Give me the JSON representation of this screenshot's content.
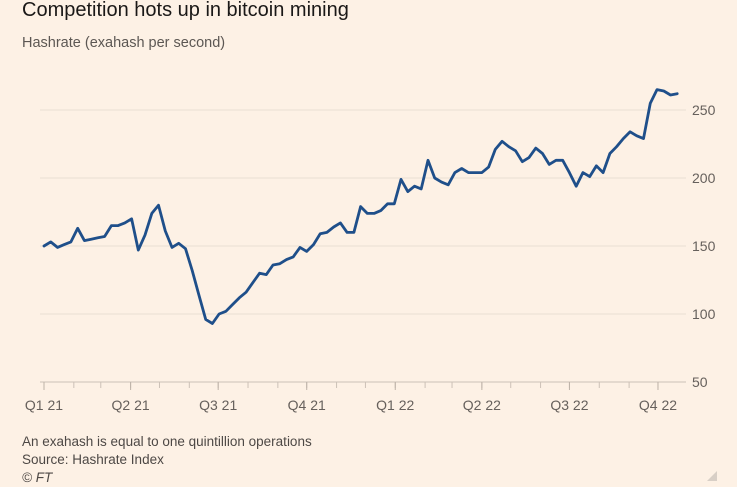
{
  "title": "Competition hots up in bitcoin mining",
  "subtitle": "Hashrate (exahash per second)",
  "footnote": "An exahash is equal to one quintillion operations",
  "source": "Source: Hashrate Index",
  "credit": "© FT",
  "colors": {
    "background": "#fdf1e5",
    "line": "#1f4f8a",
    "grid": "#e9dfd4"
  },
  "chart_data": {
    "type": "line",
    "title": "Competition hots up in bitcoin mining",
    "ylabel": "Hashrate (exahash per second)",
    "xlabel": "",
    "ylim": [
      50,
      275
    ],
    "xlim": [
      "2021-01-01",
      "2022-10-27"
    ],
    "yticks": [
      50,
      100,
      150,
      200,
      250
    ],
    "ytick_labels": [
      "50",
      "100",
      "150",
      "200",
      "250"
    ],
    "xtick_labels": [
      {
        "date": "2021-01-01",
        "label": "Q1 21"
      },
      {
        "date": "2021-04-01",
        "label": "Q2 21"
      },
      {
        "date": "2021-07-01",
        "label": "Q3 21"
      },
      {
        "date": "2021-10-01",
        "label": "Q4 21"
      },
      {
        "date": "2022-01-01",
        "label": "Q1 22"
      },
      {
        "date": "2022-04-01",
        "label": "Q2 22"
      },
      {
        "date": "2022-07-01",
        "label": "Q3 22"
      },
      {
        "date": "2022-10-01",
        "label": "Q4 22"
      }
    ],
    "grid": true,
    "y_axis_side": "right",
    "x": [
      "2021-01-01",
      "2021-01-08",
      "2021-01-15",
      "2021-01-22",
      "2021-01-29",
      "2021-02-05",
      "2021-02-12",
      "2021-02-19",
      "2021-02-26",
      "2021-03-05",
      "2021-03-12",
      "2021-03-19",
      "2021-03-26",
      "2021-04-02",
      "2021-04-09",
      "2021-04-16",
      "2021-04-23",
      "2021-04-30",
      "2021-05-07",
      "2021-05-14",
      "2021-05-21",
      "2021-05-28",
      "2021-06-04",
      "2021-06-11",
      "2021-06-18",
      "2021-06-25",
      "2021-07-02",
      "2021-07-09",
      "2021-07-16",
      "2021-07-23",
      "2021-07-30",
      "2021-08-06",
      "2021-08-13",
      "2021-08-20",
      "2021-08-27",
      "2021-09-03",
      "2021-09-10",
      "2021-09-17",
      "2021-09-24",
      "2021-10-01",
      "2021-10-08",
      "2021-10-15",
      "2021-10-22",
      "2021-10-29",
      "2021-11-05",
      "2021-11-12",
      "2021-11-19",
      "2021-11-26",
      "2021-12-03",
      "2021-12-10",
      "2021-12-17",
      "2021-12-24",
      "2021-12-31",
      "2022-01-07",
      "2022-01-14",
      "2022-01-21",
      "2022-01-28",
      "2022-02-04",
      "2022-02-11",
      "2022-02-18",
      "2022-02-25",
      "2022-03-04",
      "2022-03-11",
      "2022-03-18",
      "2022-03-25",
      "2022-04-01",
      "2022-04-08",
      "2022-04-15",
      "2022-04-22",
      "2022-04-29",
      "2022-05-06",
      "2022-05-13",
      "2022-05-20",
      "2022-05-27",
      "2022-06-03",
      "2022-06-10",
      "2022-06-17",
      "2022-06-24",
      "2022-07-01",
      "2022-07-08",
      "2022-07-15",
      "2022-07-22",
      "2022-07-29",
      "2022-08-05",
      "2022-08-12",
      "2022-08-19",
      "2022-08-26",
      "2022-09-02",
      "2022-09-09",
      "2022-09-16",
      "2022-09-23",
      "2022-09-30",
      "2022-10-07",
      "2022-10-14",
      "2022-10-21"
    ],
    "series": [
      {
        "values": [
          150,
          153,
          149,
          151,
          153,
          163,
          154,
          155,
          156,
          157,
          165,
          165,
          167,
          170,
          147,
          158,
          174,
          180,
          161,
          149,
          152,
          148,
          132,
          114,
          96,
          93,
          100,
          102,
          107,
          112,
          116,
          123,
          130,
          129,
          136,
          137,
          140,
          142,
          149,
          146,
          151,
          159,
          160,
          164,
          167,
          160,
          160,
          179,
          174,
          174,
          176,
          181,
          181,
          199,
          190,
          194,
          192,
          213,
          200,
          197,
          195,
          204,
          207,
          204,
          204,
          204,
          208,
          221,
          227,
          223,
          220,
          212,
          215,
          222,
          218,
          210,
          213,
          213,
          204,
          194,
          204,
          201,
          209,
          204,
          218,
          223,
          229,
          234,
          231,
          229,
          255,
          265,
          264,
          261,
          262
        ]
      }
    ]
  }
}
